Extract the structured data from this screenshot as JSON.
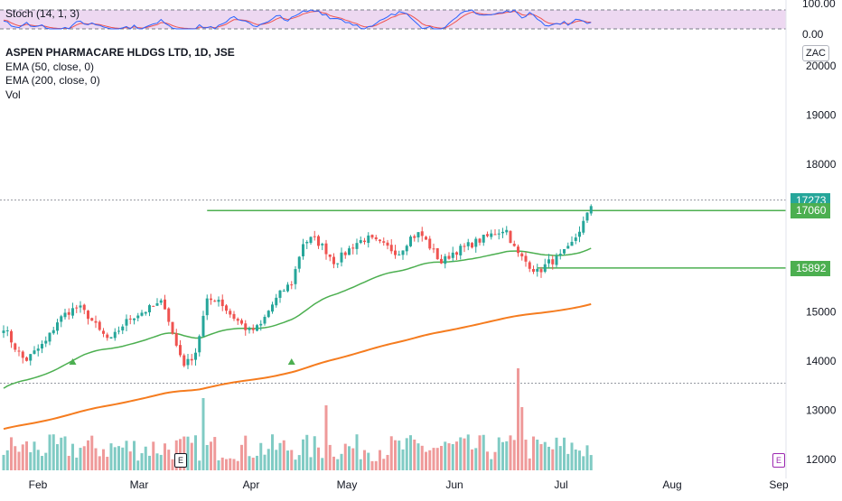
{
  "chart_data": {
    "type": "candlestick",
    "title": "ASPEN PHARMACARE HLDGS LTD, 1D, JSE",
    "indicators": [
      "EMA (50, close, 0)",
      "EMA (200, close, 0)",
      "Vol"
    ],
    "stoch_label": "Stoch (14, 1, 3)",
    "stoch_ticks": [
      "100.00",
      "0.00"
    ],
    "currency": "ZAC",
    "y_ticks": [
      "20000",
      "19000",
      "18000",
      "15000",
      "14000",
      "13000",
      "12000"
    ],
    "x_ticks": [
      "Feb",
      "Mar",
      "Apr",
      "May",
      "Jun",
      "Jul",
      "Aug",
      "Sep"
    ],
    "ylim": [
      11950,
      20400
    ],
    "price_tags": [
      {
        "label": "17273",
        "value": 17273,
        "color": "#26a69a"
      },
      {
        "label": "17060",
        "value": 17060,
        "color": "#4caf50"
      },
      {
        "label": "15892",
        "value": 15892,
        "color": "#4caf50"
      }
    ],
    "horizontal_lines": [
      {
        "value": 17060,
        "color": "#4caf50",
        "from_bar": 53
      },
      {
        "value": 15892,
        "color": "#4caf50",
        "from_bar": 139
      }
    ],
    "dotted_lines": [
      17273,
      13550
    ],
    "candles": [],
    "markers": [
      "E",
      "E"
    ],
    "colors": {
      "up": "#26a69a",
      "down": "#ef5350",
      "ema50": "#4caf50",
      "ema200": "#f57c1f",
      "stoch_k": "#2962ff",
      "stoch_d": "#ef5350",
      "stoch_bg": "#e1bee7"
    }
  }
}
